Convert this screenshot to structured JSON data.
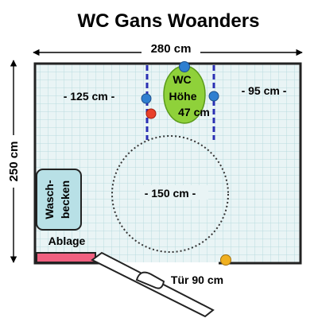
{
  "title": "WC Gans Woanders",
  "dimensions": {
    "width_label": "280 cm",
    "height_label": "250 cm"
  },
  "measurements": {
    "left_gap": "- 125 cm -",
    "right_gap": "- 95 cm -",
    "turning_circle": "- 150 cm -"
  },
  "toilet": {
    "line1": "WC",
    "line2": "Höhe",
    "line3": "47 cm"
  },
  "sink": {
    "line1": "Wasch-",
    "line2": "becken"
  },
  "shelf_label": "Ablage",
  "door_label": "Tür 90 cm",
  "colors": {
    "wall": "#222222",
    "floor_tile_fill": "#e9f4f5",
    "floor_tile_grid": "#b9dbe0",
    "toilet_fill": "#8fd13a",
    "sink_fill": "#b8e0e6",
    "grab_bar": "#2a2fb3",
    "blue_marker": "#2f7fd0",
    "red_marker": "#e8402a",
    "door_marker": "#f0b020",
    "shelf_fill": "#f06080"
  }
}
